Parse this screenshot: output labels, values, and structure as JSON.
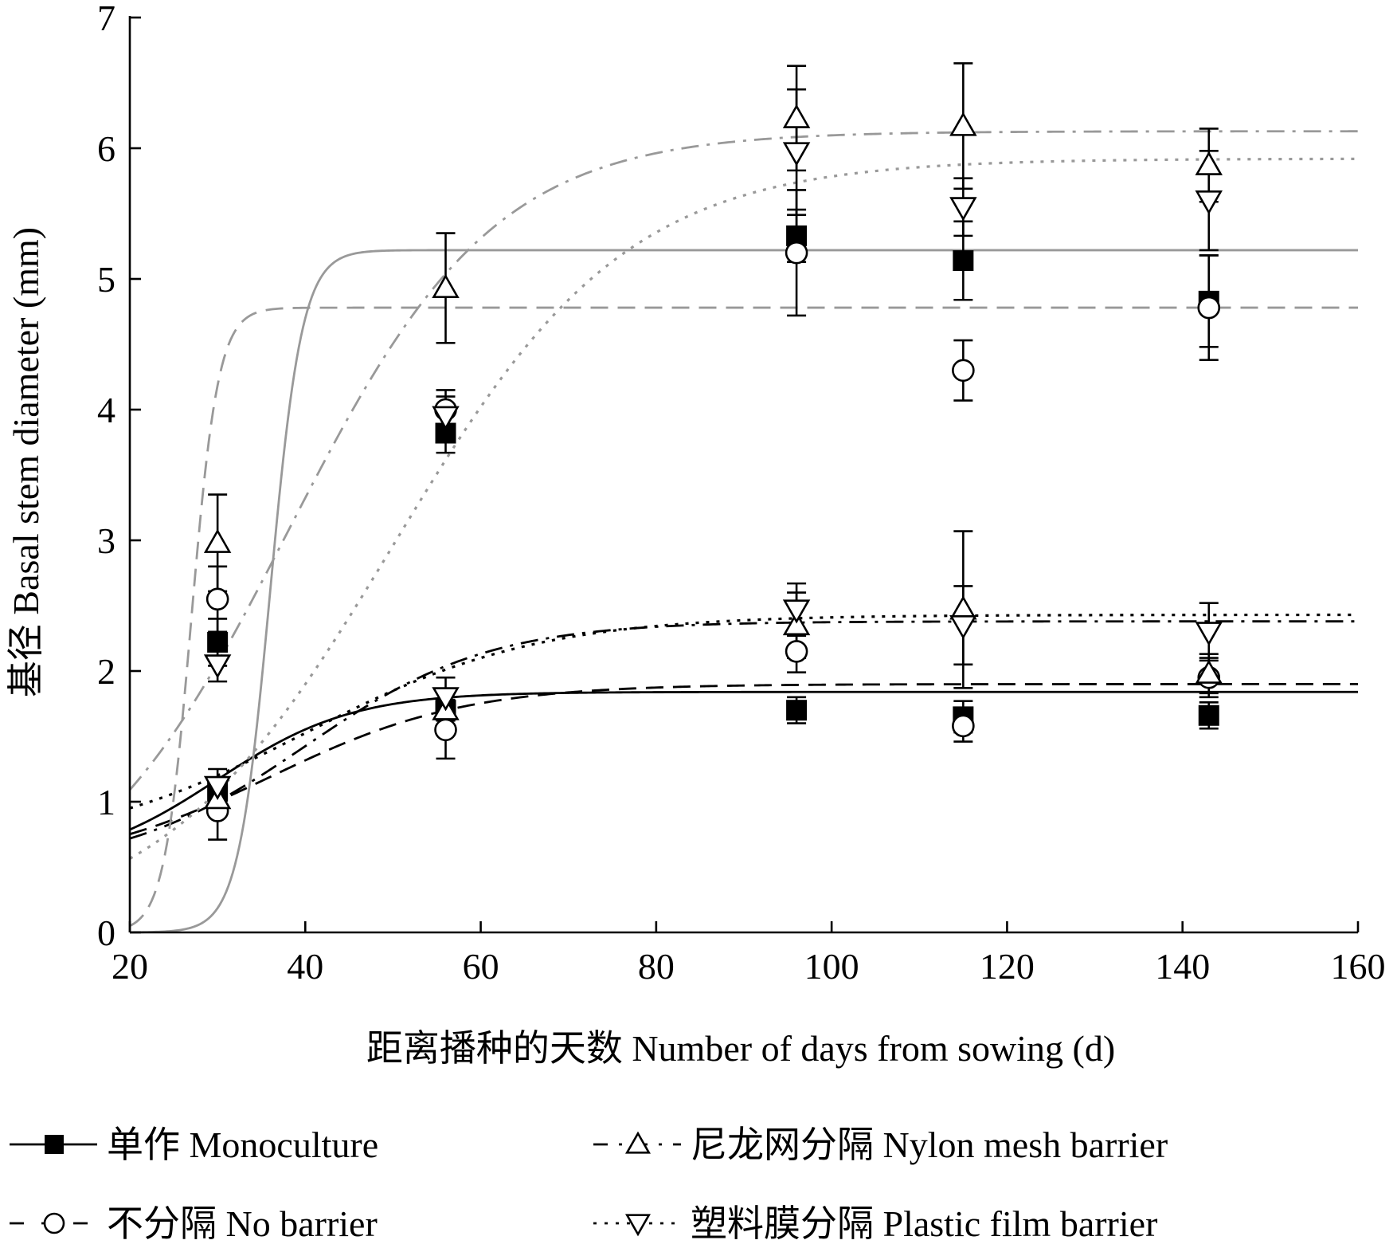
{
  "chart_data": {
    "type": "scatter",
    "xlabel": "距离播种的天数 Number of days from sowing (d)",
    "ylabel": "基径 Basal stem diameter (mm)",
    "xlim": [
      20,
      160
    ],
    "ylim": [
      0,
      7
    ],
    "x_ticks": [
      20,
      40,
      60,
      80,
      100,
      120,
      140,
      160
    ],
    "y_ticks": [
      0,
      1,
      2,
      3,
      4,
      5,
      6,
      7
    ],
    "grid": false,
    "legend_position": "bottom",
    "x": [
      30,
      56,
      96,
      115,
      143
    ],
    "series": [
      {
        "name": "单作 Monoculture",
        "marker": "filled-square",
        "line_style": "solid",
        "groups": [
          {
            "values": [
              1.08,
              1.7,
              1.7,
              1.65,
              1.66
            ],
            "errors": [
              0.1,
              0.08,
              0.1,
              0.12,
              0.1
            ]
          },
          {
            "values": [
              2.22,
              3.82,
              5.33,
              5.14,
              4.83
            ],
            "errors": [
              0.18,
              0.15,
              0.2,
              0.3,
              0.35
            ]
          }
        ]
      },
      {
        "name": "不分隔 No barrier",
        "marker": "open-circle",
        "line_style": "dashed",
        "groups": [
          {
            "values": [
              0.93,
              1.55,
              2.15,
              1.58,
              1.95
            ],
            "errors": [
              0.22,
              0.22,
              0.16,
              0.12,
              0.15
            ]
          },
          {
            "values": [
              2.55,
              4.0,
              5.2,
              4.3,
              4.78
            ],
            "errors": [
              0.25,
              0.15,
              0.48,
              0.23,
              0.4
            ]
          }
        ]
      },
      {
        "name": "尼龙网分隔 Nylon mesh barrier",
        "marker": "open-triangle-up",
        "line_style": "dash-dot",
        "groups": [
          {
            "values": [
              1.02,
              1.7,
              2.35,
              2.47,
              1.98
            ],
            "errors": [
              0.13,
              0.13,
              0.25,
              0.6,
              0.15
            ]
          },
          {
            "values": [
              2.98,
              4.93,
              6.23,
              6.17,
              5.87
            ],
            "errors": [
              0.37,
              0.42,
              0.4,
              0.48,
              0.28
            ]
          }
        ]
      },
      {
        "name": "塑料膜分隔 Plastic film barrier",
        "marker": "open-triangle-down",
        "line_style": "dotted",
        "groups": [
          {
            "values": [
              1.12,
              1.8,
              2.47,
              2.35,
              2.3
            ],
            "errors": [
              0.13,
              0.15,
              0.2,
              0.3,
              0.22
            ]
          },
          {
            "values": [
              2.05,
              3.95,
              5.97,
              5.55,
              5.6
            ],
            "errors": [
              0.13,
              0.15,
              0.48,
              0.22,
              0.38
            ]
          }
        ]
      }
    ],
    "fitted_curves": [
      {
        "series": "单作 Monoculture",
        "group": 0,
        "color": "#000000",
        "style": "solid",
        "asymptote": 1.84,
        "base": 0.5,
        "rate": 0.13,
        "midpoint": 30
      },
      {
        "series": "不分隔 No barrier",
        "group": 0,
        "color": "#000000",
        "style": "dashed",
        "asymptote": 1.9,
        "base": 0.48,
        "rate": 0.09,
        "midpoint": 36
      },
      {
        "series": "尼龙网分隔 Nylon mesh barrier",
        "group": 0,
        "color": "#000000",
        "style": "dash-dot",
        "asymptote": 2.38,
        "base": 0.47,
        "rate": 0.095,
        "midpoint": 40
      },
      {
        "series": "塑料膜分隔 Plastic film barrier",
        "group": 0,
        "color": "#000000",
        "style": "dotted",
        "asymptote": 2.43,
        "base": 0.62,
        "rate": 0.075,
        "midpoint": 40
      },
      {
        "series": "单作 Monoculture",
        "group": 1,
        "color": "#999999",
        "style": "solid",
        "asymptote": 5.22,
        "base": 0.0,
        "rate": 0.55,
        "midpoint": 36
      },
      {
        "series": "不分隔 No barrier",
        "group": 1,
        "color": "#999999",
        "style": "dashed",
        "asymptote": 4.78,
        "base": 0.0,
        "rate": 0.65,
        "midpoint": 27
      },
      {
        "series": "尼龙网分隔 Nylon mesh barrier",
        "group": 1,
        "color": "#999999",
        "style": "dash-dot",
        "asymptote": 6.13,
        "base": 0.0,
        "rate": 0.085,
        "midpoint": 38
      },
      {
        "series": "塑料膜分隔 Plastic film barrier",
        "group": 1,
        "color": "#999999",
        "style": "dotted",
        "asymptote": 5.92,
        "base": 0.0,
        "rate": 0.075,
        "midpoint": 50
      }
    ]
  }
}
